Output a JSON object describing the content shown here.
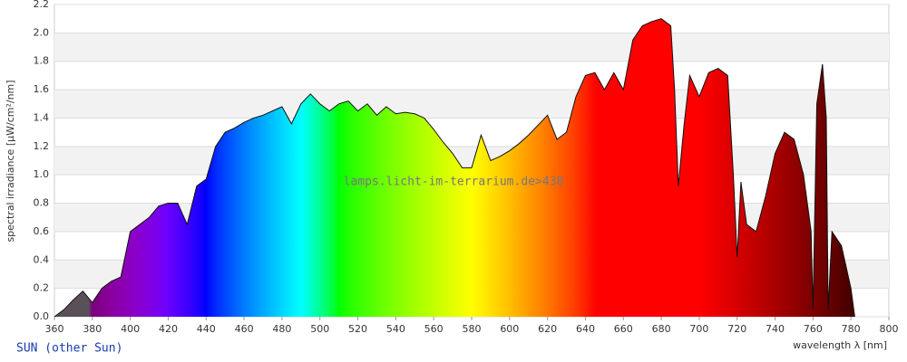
{
  "chart_data": {
    "type": "area",
    "y_label": "spectral irradiance [µW/cm²/nm]",
    "x_label": "wavelength λ [nm]",
    "legend": "SUN (other Sun)",
    "watermark": "lamps.licht-im-terrarium.de>438",
    "x": [
      360,
      365,
      370,
      375,
      380,
      385,
      390,
      395,
      400,
      405,
      410,
      415,
      420,
      425,
      430,
      435,
      440,
      445,
      450,
      455,
      460,
      465,
      470,
      475,
      480,
      485,
      490,
      495,
      500,
      505,
      510,
      515,
      520,
      525,
      530,
      535,
      540,
      545,
      550,
      555,
      560,
      565,
      570,
      575,
      580,
      585,
      590,
      595,
      600,
      605,
      610,
      615,
      620,
      625,
      630,
      635,
      640,
      645,
      650,
      655,
      660,
      665,
      670,
      675,
      680,
      685,
      687,
      689,
      692,
      695,
      700,
      705,
      710,
      715,
      718,
      720,
      722,
      725,
      730,
      735,
      740,
      745,
      750,
      755,
      759,
      760,
      762,
      765,
      767,
      768,
      770,
      775,
      780,
      782
    ],
    "values": [
      0.0,
      0.05,
      0.12,
      0.18,
      0.1,
      0.2,
      0.25,
      0.28,
      0.6,
      0.65,
      0.7,
      0.78,
      0.8,
      0.8,
      0.65,
      0.92,
      0.97,
      1.2,
      1.3,
      1.33,
      1.37,
      1.4,
      1.42,
      1.45,
      1.48,
      1.36,
      1.5,
      1.57,
      1.5,
      1.45,
      1.5,
      1.52,
      1.45,
      1.5,
      1.42,
      1.48,
      1.43,
      1.44,
      1.43,
      1.4,
      1.32,
      1.23,
      1.15,
      1.05,
      1.05,
      1.28,
      1.1,
      1.13,
      1.17,
      1.22,
      1.28,
      1.35,
      1.42,
      1.25,
      1.3,
      1.55,
      1.7,
      1.72,
      1.6,
      1.72,
      1.6,
      1.95,
      2.05,
      2.08,
      2.1,
      2.05,
      1.6,
      0.92,
      1.35,
      1.7,
      1.55,
      1.72,
      1.75,
      1.7,
      1.0,
      0.42,
      0.95,
      0.65,
      0.6,
      0.85,
      1.15,
      1.3,
      1.25,
      1.0,
      0.6,
      0.05,
      1.5,
      1.78,
      1.4,
      0.05,
      0.6,
      0.5,
      0.2,
      0.0
    ],
    "xlim": [
      360,
      800
    ],
    "xticks": [
      360,
      380,
      400,
      420,
      440,
      460,
      480,
      500,
      520,
      540,
      560,
      580,
      600,
      620,
      640,
      660,
      680,
      700,
      720,
      740,
      760,
      780,
      800
    ],
    "ylim": [
      0,
      2.2
    ],
    "yticks": [
      {
        "value": 0,
        "label": "0.0"
      },
      {
        "value": 0.2,
        "label": "0.2"
      },
      {
        "value": 0.4,
        "label": "0.4"
      },
      {
        "value": 0.6,
        "label": "0.6"
      },
      {
        "value": 0.8,
        "label": "0.8"
      },
      {
        "value": 1,
        "label": "1.0"
      },
      {
        "value": 1.2,
        "label": "1.2"
      },
      {
        "value": 1.4,
        "label": "1.4"
      },
      {
        "value": 1.6,
        "label": "1.6"
      },
      {
        "value": 1.8,
        "label": "1.8"
      },
      {
        "value": 2,
        "label": "2.0"
      },
      {
        "value": 2.2,
        "label": "2.2"
      }
    ],
    "grid": true
  }
}
